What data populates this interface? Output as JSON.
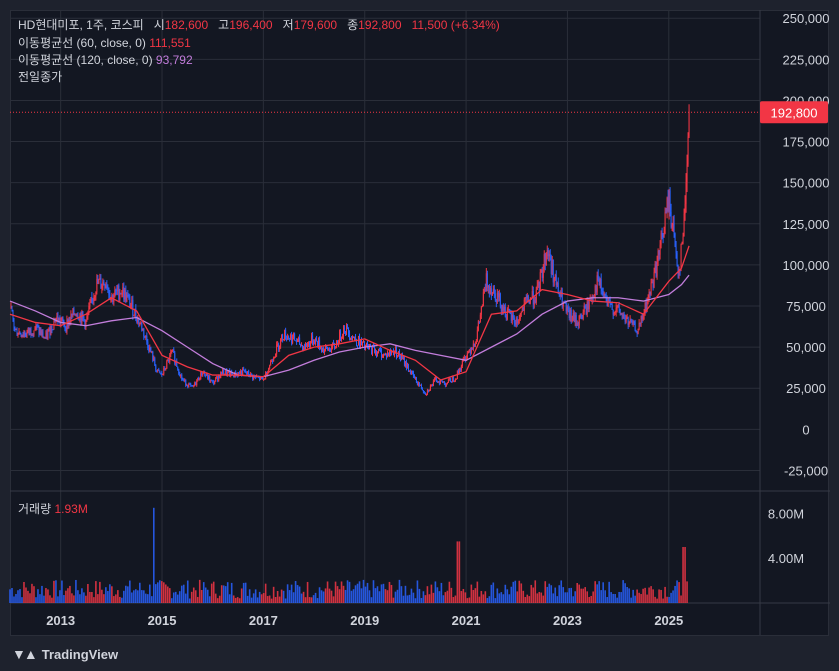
{
  "legend": {
    "symbol": "HD현대미포, 1주, 코스피",
    "open_label": "시",
    "open": "182,600",
    "high_label": "고",
    "high": "196,400",
    "low_label": "저",
    "low": "179,600",
    "close_label": "종",
    "close": "192,800",
    "change": "11,500 (+6.34%)",
    "ma60_label": "이동평균선 (60, close, 0)",
    "ma60_value": "111,551",
    "ma120_label": "이동평균선 (120, close, 0)",
    "ma120_value": "93,792",
    "prev_close_label": "전일종가",
    "volume_label": "거래량",
    "volume_value": "1.93M"
  },
  "branding": {
    "logo_text": "TradingView"
  },
  "colors": {
    "up": "#f23645",
    "down": "#2962ff",
    "ma60": "#f23645",
    "ma120": "#c27ddb",
    "background": "#131722",
    "grid": "#2a2e39",
    "text": "#d1d4dc"
  },
  "chart_data": {
    "type": "candlestick",
    "price_axis": {
      "ylim": [
        -37500,
        255000
      ],
      "ticks": [
        "250,000",
        "225,000",
        "200,000",
        "175,000",
        "150,000",
        "125,000",
        "100,000",
        "75,000",
        "50,000",
        "25,000",
        "0",
        "-25,000"
      ],
      "tick_values": [
        250000,
        225000,
        200000,
        175000,
        150000,
        125000,
        100000,
        75000,
        50000,
        25000,
        0,
        -25000
      ],
      "last_price_label": "192,800",
      "last_price": 192800
    },
    "volume_axis": {
      "ylim": [
        0,
        10000000
      ],
      "ticks": [
        "8.00M",
        "4.00M"
      ],
      "tick_values": [
        8000000,
        4000000
      ]
    },
    "x_axis": {
      "xlim": [
        2012.0,
        2026.8
      ],
      "ticks": [
        "2013",
        "2015",
        "2017",
        "2019",
        "2021",
        "2023",
        "2025"
      ],
      "tick_values": [
        2013,
        2015,
        2017,
        2019,
        2021,
        2023,
        2025
      ]
    },
    "close_series": {
      "x": [
        2012.0,
        2012.1,
        2012.3,
        2012.5,
        2012.7,
        2012.9,
        2013.1,
        2013.3,
        2013.5,
        2013.7,
        2013.9,
        2014.0,
        2014.2,
        2014.4,
        2014.6,
        2014.8,
        2014.9,
        2015.0,
        2015.2,
        2015.4,
        2015.6,
        2015.8,
        2016.0,
        2016.2,
        2016.4,
        2016.6,
        2016.8,
        2017.0,
        2017.2,
        2017.4,
        2017.6,
        2017.8,
        2018.0,
        2018.2,
        2018.4,
        2018.6,
        2018.8,
        2019.0,
        2019.2,
        2019.4,
        2019.6,
        2019.8,
        2020.0,
        2020.2,
        2020.4,
        2020.6,
        2020.8,
        2021.0,
        2021.2,
        2021.4,
        2021.6,
        2021.8,
        2022.0,
        2022.2,
        2022.4,
        2022.6,
        2022.8,
        2023.0,
        2023.2,
        2023.4,
        2023.6,
        2023.8,
        2024.0,
        2024.2,
        2024.4,
        2024.6,
        2024.8,
        2025.0,
        2025.2,
        2025.3,
        2025.4
      ],
      "values": [
        75000,
        60000,
        58000,
        62000,
        55000,
        68000,
        63000,
        72000,
        65000,
        88000,
        90000,
        80000,
        85000,
        75000,
        62000,
        45000,
        35000,
        33000,
        47000,
        30000,
        25000,
        35000,
        28000,
        35000,
        33000,
        35000,
        32000,
        30000,
        45000,
        58000,
        55000,
        50000,
        55000,
        48000,
        50000,
        62000,
        55000,
        50000,
        48000,
        45000,
        48000,
        40000,
        30000,
        22000,
        30000,
        28000,
        32000,
        45000,
        55000,
        90000,
        82000,
        70000,
        65000,
        78000,
        82000,
        110000,
        85000,
        70000,
        65000,
        75000,
        90000,
        75000,
        72000,
        65000,
        60000,
        80000,
        105000,
        140000,
        95000,
        125000,
        192800
      ]
    },
    "ma60_series": {
      "x": [
        2012.0,
        2012.5,
        2013.0,
        2013.5,
        2014.0,
        2014.5,
        2015.0,
        2015.5,
        2016.0,
        2016.5,
        2017.0,
        2017.5,
        2018.0,
        2018.5,
        2019.0,
        2019.5,
        2020.0,
        2020.5,
        2021.0,
        2021.5,
        2022.0,
        2022.5,
        2023.0,
        2023.5,
        2024.0,
        2024.5,
        2025.0,
        2025.25,
        2025.4
      ],
      "values": [
        70000,
        65000,
        63000,
        70000,
        80000,
        72000,
        45000,
        38000,
        33000,
        33000,
        32000,
        45000,
        50000,
        52000,
        55000,
        48000,
        42000,
        30000,
        35000,
        70000,
        72000,
        85000,
        82000,
        78000,
        77000,
        70000,
        90000,
        98000,
        111551
      ]
    },
    "ma120_series": {
      "x": [
        2012.0,
        2012.5,
        2013.0,
        2013.5,
        2014.0,
        2014.5,
        2015.0,
        2015.5,
        2016.0,
        2016.5,
        2017.0,
        2017.5,
        2018.0,
        2018.5,
        2019.0,
        2019.5,
        2020.0,
        2020.5,
        2021.0,
        2021.5,
        2022.0,
        2022.5,
        2023.0,
        2023.5,
        2024.0,
        2024.5,
        2025.0,
        2025.25,
        2025.4
      ],
      "values": [
        78000,
        72000,
        65000,
        63000,
        66000,
        68000,
        60000,
        50000,
        40000,
        33000,
        32000,
        36000,
        42000,
        47000,
        50000,
        52000,
        48000,
        45000,
        42000,
        50000,
        58000,
        70000,
        78000,
        80000,
        80000,
        78000,
        82000,
        88000,
        93792
      ]
    },
    "volume_bars": {
      "count": 340,
      "spikes": [
        {
          "x": 2014.85,
          "value": 8500000
        },
        {
          "x": 2020.85,
          "value": 5500000
        },
        {
          "x": 2025.3,
          "value": 5000000
        }
      ],
      "typical": 1300000,
      "last": 1930000
    }
  }
}
